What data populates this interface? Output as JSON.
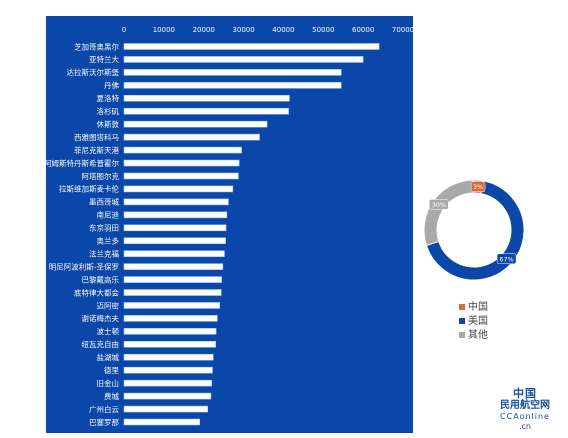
{
  "chart_data": [
    {
      "type": "bar",
      "orientation": "horizontal",
      "background_color": "#0a47a8",
      "bar_color": "#ffffff",
      "grid": false,
      "xlim": [
        0,
        70000
      ],
      "x_ticks": [
        0,
        10000,
        20000,
        30000,
        40000,
        50000,
        60000,
        70000
      ],
      "x_tick_labels": [
        "0",
        "10000",
        "20000",
        "30000",
        "40000",
        "50000",
        "60000",
        "70000"
      ],
      "categories": [
        "芝加哥奥黑尔",
        "亚特兰大",
        "达拉斯沃尔斯堡",
        "丹佛",
        "夏洛特",
        "洛杉矶",
        "休斯敦",
        "西雅图塔科马",
        "菲尼克斯天港",
        "阿姆斯特丹斯希普霍尔",
        "阿塔图尔克",
        "拉斯维加斯麦卡伦",
        "墨西哥城",
        "南尼迪",
        "东京羽田",
        "奥兰多",
        "法兰克福",
        "明尼阿波利斯-圣保罗",
        "巴黎戴高乐",
        "底特律大都会",
        "迈阿密",
        "谢诺梅杰夫",
        "波士顿",
        "纽瓦克自由",
        "盐湖城",
        "德里",
        "旧金山",
        "费城",
        "广州白云",
        "巴塞罗那"
      ],
      "values": [
        64000,
        60000,
        54500,
        54500,
        41500,
        41300,
        35900,
        34000,
        29500,
        28900,
        28700,
        27300,
        26200,
        25800,
        25600,
        25500,
        25200,
        24800,
        24500,
        24400,
        24000,
        23400,
        23100,
        23000,
        22400,
        22200,
        22000,
        21800,
        21000,
        19000
      ]
    },
    {
      "type": "pie",
      "style": "donut",
      "labels": [
        "中国",
        "美国",
        "其他"
      ],
      "values": [
        3,
        67,
        30
      ],
      "value_labels": [
        "3%",
        "67%",
        "30%"
      ],
      "colors": [
        "#dd6a3a",
        "#0a47a8",
        "#a9a9a9"
      ],
      "legend_position": "bottom"
    }
  ],
  "watermark": {
    "line1": "中国",
    "line2": "民用航空网",
    "line3": "CCAonline",
    "line4": ".cn"
  }
}
